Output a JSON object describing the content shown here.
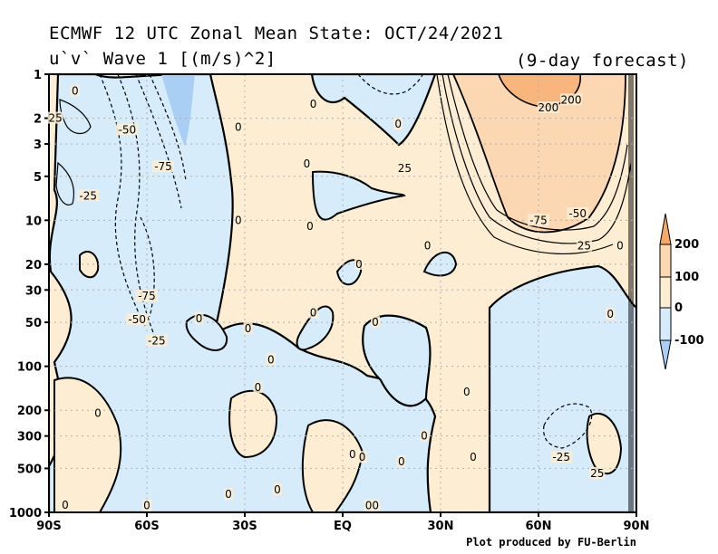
{
  "header": {
    "title_line1": "ECMWF 12 UTC Zonal Mean State: OCT/24/2021",
    "title_line2": "u`v` Wave 1 [(m/s)^2]",
    "subtitle": "(9-day forecast)"
  },
  "credit": "Plot produced by FU-Berlin",
  "colors": {
    "neg": "#d6ecfb",
    "pos_low": "#fdeed3",
    "pos_mid": "#fbd8b2",
    "pos_high": "#f6a866",
    "neg_deep": "#a9cff4",
    "grid": "#b0b0b0"
  },
  "chart_data": {
    "type": "heatmap",
    "title": "ECMWF 12 UTC Zonal Mean State: OCT/24/2021",
    "xlabel": "",
    "ylabel": "",
    "x_ticks": [
      "90S",
      "60S",
      "30S",
      "EQ",
      "30N",
      "60N",
      "90N"
    ],
    "x_values": [
      -90,
      -60,
      -30,
      0,
      30,
      60,
      90
    ],
    "y_ticks": [
      "1",
      "2",
      "3",
      "5",
      "10",
      "20",
      "30",
      "50",
      "100",
      "200",
      "300",
      "500",
      "1000"
    ],
    "y_values": [
      1,
      2,
      3,
      5,
      10,
      20,
      30,
      50,
      100,
      200,
      300,
      500,
      1000
    ],
    "y_scale": "log",
    "y_inverted": true,
    "grid": true,
    "colorbar": {
      "ticks": [
        "200",
        "100",
        "0",
        "-100"
      ],
      "values": [
        200,
        100,
        0,
        -100
      ]
    },
    "contour_labels": [
      {
        "text": "0",
        "lat": -82,
        "p": 1.3
      },
      {
        "text": "25",
        "lat": -88,
        "p": 2.0
      },
      {
        "text": "-50",
        "lat": -66,
        "p": 2.4
      },
      {
        "text": "0",
        "lat": -32,
        "p": 2.3
      },
      {
        "text": "-75",
        "lat": -55,
        "p": 4.3
      },
      {
        "text": "-25",
        "lat": -78,
        "p": 6.8
      },
      {
        "text": "0",
        "lat": -9,
        "p": 1.6
      },
      {
        "text": "0",
        "lat": 17,
        "p": 2.2
      },
      {
        "text": "0",
        "lat": -11,
        "p": 4.1
      },
      {
        "text": "25",
        "lat": 19,
        "p": 4.4
      },
      {
        "text": "0",
        "lat": -10,
        "p": 11.0
      },
      {
        "text": "0",
        "lat": -32,
        "p": 10.0
      },
      {
        "text": "200",
        "lat": 63,
        "p": 1.7
      },
      {
        "text": "200",
        "lat": 70,
        "p": 1.5
      },
      {
        "text": "-75",
        "lat": 60,
        "p": 10.0
      },
      {
        "text": "-50",
        "lat": 72,
        "p": 9.0
      },
      {
        "text": "25",
        "lat": 74,
        "p": 15.0
      },
      {
        "text": "0",
        "lat": 26,
        "p": 15.0
      },
      {
        "text": "0",
        "lat": 85,
        "p": 15.0
      },
      {
        "text": "0",
        "lat": 5,
        "p": 20.0
      },
      {
        "text": "-75",
        "lat": -60,
        "p": 33.0
      },
      {
        "text": "-50",
        "lat": -63,
        "p": 48.0
      },
      {
        "text": "-25",
        "lat": -57,
        "p": 67.0
      },
      {
        "text": "0",
        "lat": -44,
        "p": 47.0
      },
      {
        "text": "0",
        "lat": -29,
        "p": 55.0
      },
      {
        "text": "0",
        "lat": -9,
        "p": 43.0
      },
      {
        "text": "0",
        "lat": 10,
        "p": 50.0
      },
      {
        "text": "0",
        "lat": 82,
        "p": 44.0
      },
      {
        "text": "0",
        "lat": -22,
        "p": 90.0
      },
      {
        "text": "0",
        "lat": -26,
        "p": 140.0
      },
      {
        "text": "0",
        "lat": -75,
        "p": 210.0
      },
      {
        "text": "0",
        "lat": 38,
        "p": 150.0
      },
      {
        "text": "0",
        "lat": 25,
        "p": 300.0
      },
      {
        "text": "0",
        "lat": 3,
        "p": 400.0
      },
      {
        "text": "0",
        "lat": 18,
        "p": 450.0
      },
      {
        "text": "0",
        "lat": 6,
        "p": 420.0
      },
      {
        "text": "0",
        "lat": 40,
        "p": 420.0
      },
      {
        "text": "-25",
        "lat": 67,
        "p": 420.0
      },
      {
        "text": "25",
        "lat": 78,
        "p": 540.0
      },
      {
        "text": "0",
        "lat": -35,
        "p": 750.0
      },
      {
        "text": "0",
        "lat": -20,
        "p": 700.0
      },
      {
        "text": "0",
        "lat": -60,
        "p": 900.0
      },
      {
        "text": "0",
        "lat": -85,
        "p": 890.0
      },
      {
        "text": "00",
        "lat": 9,
        "p": 900.0
      }
    ]
  }
}
